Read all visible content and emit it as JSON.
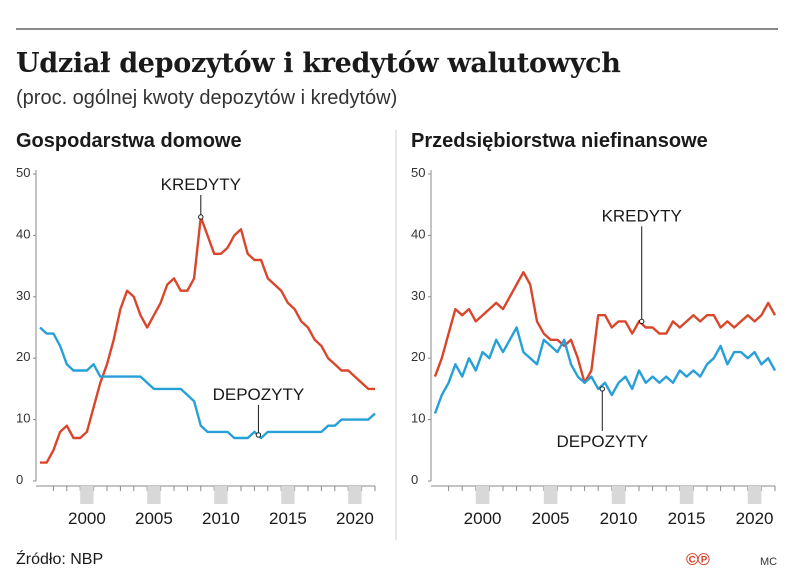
{
  "header": {
    "title": "Udział depozytów i kredytów walutowych",
    "subtitle": "(proc. ogólnej kwoty depozytów i kredytów)"
  },
  "footer": {
    "source": "Źródło: NBP",
    "copyright": "©℗",
    "author": "MC"
  },
  "colors": {
    "kredyty": "#d9462b",
    "depozyty": "#27a0d8",
    "axis": "#8a8a8a",
    "band": "#d8d8d8"
  },
  "chart_data": [
    {
      "type": "line",
      "title": "Gospodarstwa domowe",
      "ylim": [
        0,
        50
      ],
      "yticks": [
        "0",
        "10",
        "20",
        "30",
        "40",
        "50"
      ],
      "xlim": [
        1997,
        2022
      ],
      "xticks": [
        "2000",
        "2005",
        "2010",
        "2015",
        "2020"
      ],
      "series": [
        {
          "name": "KREDYTY",
          "x": [
            1997.0,
            1997.5,
            1998.0,
            1998.5,
            1999.0,
            1999.5,
            2000.0,
            2000.5,
            2001.0,
            2001.5,
            2002.0,
            2002.5,
            2003.0,
            2003.5,
            2004.0,
            2004.5,
            2005.0,
            2005.5,
            2006.0,
            2006.5,
            2007.0,
            2007.5,
            2008.0,
            2008.5,
            2009.0,
            2009.5,
            2010.0,
            2010.5,
            2011.0,
            2011.5,
            2012.0,
            2012.5,
            2013.0,
            2013.5,
            2014.0,
            2014.5,
            2015.0,
            2015.5,
            2016.0,
            2016.5,
            2017.0,
            2017.5,
            2018.0,
            2018.5,
            2019.0,
            2019.5,
            2020.0,
            2020.5,
            2021.0,
            2021.5,
            2022.0
          ],
          "values": [
            3,
            3,
            5,
            8,
            9,
            7,
            7,
            8,
            12,
            16,
            19,
            23,
            28,
            31,
            30,
            27,
            25,
            27,
            29,
            32,
            33,
            31,
            31,
            33,
            43,
            40,
            37,
            37,
            38,
            40,
            41,
            37,
            36,
            36,
            33,
            32,
            31,
            29,
            28,
            26,
            25,
            23,
            22,
            20,
            19,
            18,
            18,
            17,
            16,
            15,
            15
          ]
        },
        {
          "name": "DEPOZYTY",
          "x": [
            1997.0,
            1997.5,
            1998.0,
            1998.5,
            1999.0,
            1999.5,
            2000.0,
            2000.5,
            2001.0,
            2001.5,
            2002.0,
            2002.5,
            2003.0,
            2003.5,
            2004.0,
            2004.5,
            2005.0,
            2005.5,
            2006.0,
            2006.5,
            2007.0,
            2007.5,
            2008.0,
            2008.5,
            2009.0,
            2009.5,
            2010.0,
            2010.5,
            2011.0,
            2011.5,
            2012.0,
            2012.5,
            2013.0,
            2013.5,
            2014.0,
            2014.5,
            2015.0,
            2015.5,
            2016.0,
            2016.5,
            2017.0,
            2017.5,
            2018.0,
            2018.5,
            2019.0,
            2019.5,
            2020.0,
            2020.5,
            2021.0,
            2021.5,
            2022.0
          ],
          "values": [
            25,
            24,
            24,
            22,
            19,
            18,
            18,
            18,
            19,
            17,
            17,
            17,
            17,
            17,
            17,
            17,
            16,
            15,
            15,
            15,
            15,
            15,
            14,
            13,
            9,
            8,
            8,
            8,
            8,
            7,
            7,
            7,
            8,
            7,
            8,
            8,
            8,
            8,
            8,
            8,
            8,
            8,
            8,
            9,
            9,
            10,
            10,
            10,
            10,
            10,
            11
          ]
        }
      ],
      "annotations": [
        {
          "text": "KREDYTY",
          "x": 2009.0,
          "y": 43
        },
        {
          "text": "DEPOZYTY",
          "x": 2013.3,
          "y": 7.5
        }
      ]
    },
    {
      "type": "line",
      "title": "Przedsiębiorstwa niefinansowe",
      "ylim": [
        0,
        50
      ],
      "yticks": [
        "0",
        "10",
        "20",
        "30",
        "40",
        "50"
      ],
      "xlim": [
        1997,
        2022
      ],
      "xticks": [
        "2000",
        "2005",
        "2010",
        "2015",
        "2020"
      ],
      "series": [
        {
          "name": "KREDYTY",
          "x": [
            1997.0,
            1997.5,
            1998.0,
            1998.5,
            1999.0,
            1999.5,
            2000.0,
            2000.5,
            2001.0,
            2001.5,
            2002.0,
            2002.5,
            2003.0,
            2003.5,
            2004.0,
            2004.5,
            2005.0,
            2005.5,
            2006.0,
            2006.5,
            2007.0,
            2007.5,
            2008.0,
            2008.5,
            2009.0,
            2009.5,
            2010.0,
            2010.5,
            2011.0,
            2011.5,
            2012.0,
            2012.5,
            2013.0,
            2013.5,
            2014.0,
            2014.5,
            2015.0,
            2015.5,
            2016.0,
            2016.5,
            2017.0,
            2017.5,
            2018.0,
            2018.5,
            2019.0,
            2019.5,
            2020.0,
            2020.5,
            2021.0,
            2021.5,
            2022.0
          ],
          "values": [
            17,
            20,
            24,
            28,
            27,
            28,
            26,
            27,
            28,
            29,
            28,
            30,
            32,
            34,
            32,
            26,
            24,
            23,
            23,
            22,
            23,
            20,
            16,
            18,
            27,
            27,
            25,
            26,
            26,
            24,
            26,
            25,
            25,
            24,
            24,
            26,
            25,
            26,
            27,
            26,
            27,
            27,
            25,
            26,
            25,
            26,
            27,
            26,
            27,
            29,
            27
          ]
        },
        {
          "name": "DEPOZYTY",
          "x": [
            1997.0,
            1997.5,
            1998.0,
            1998.5,
            1999.0,
            1999.5,
            2000.0,
            2000.5,
            2001.0,
            2001.5,
            2002.0,
            2002.5,
            2003.0,
            2003.5,
            2004.0,
            2004.5,
            2005.0,
            2005.5,
            2006.0,
            2006.5,
            2007.0,
            2007.5,
            2008.0,
            2008.5,
            2009.0,
            2009.5,
            2010.0,
            2010.5,
            2011.0,
            2011.5,
            2012.0,
            2012.5,
            2013.0,
            2013.5,
            2014.0,
            2014.5,
            2015.0,
            2015.5,
            2016.0,
            2016.5,
            2017.0,
            2017.5,
            2018.0,
            2018.5,
            2019.0,
            2019.5,
            2020.0,
            2020.5,
            2021.0,
            2021.5,
            2022.0
          ],
          "values": [
            11,
            14,
            16,
            19,
            17,
            20,
            18,
            21,
            20,
            23,
            21,
            23,
            25,
            21,
            20,
            19,
            23,
            22,
            21,
            23,
            19,
            17,
            16,
            17,
            15,
            16,
            14,
            16,
            17,
            15,
            18,
            16,
            17,
            16,
            17,
            16,
            18,
            17,
            18,
            17,
            19,
            20,
            22,
            19,
            21,
            21,
            20,
            21,
            19,
            20,
            18
          ]
        }
      ],
      "annotations": [
        {
          "text": "KREDYTY",
          "x": 2012.2,
          "y": 26
        },
        {
          "text": "DEPOZYTY",
          "x": 2009.3,
          "y": 15
        }
      ]
    }
  ]
}
